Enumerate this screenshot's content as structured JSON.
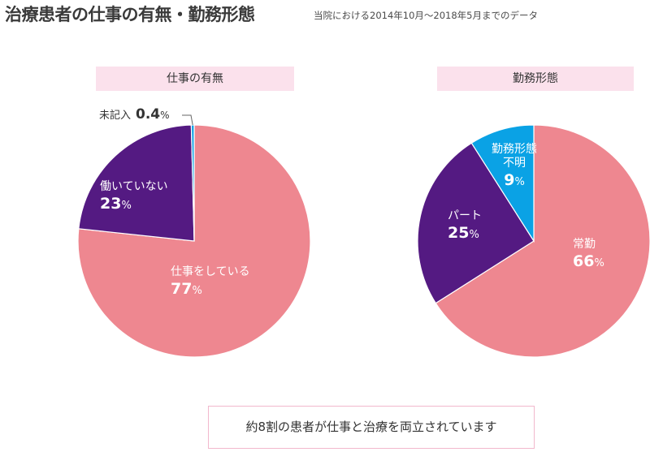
{
  "page": {
    "title": "治療患者の仕事の有無・勤務形態",
    "subtitle": "当院における2014年10月～2018年5月までのデータ",
    "summary": "約8割の患者が仕事と治療を両立されています"
  },
  "colors": {
    "pink": "#ee8790",
    "purple": "#541a82",
    "blue": "#0aa2e5",
    "header_bg": "#fbe1ec",
    "summary_border": "#f2b8cd"
  },
  "chart_data": [
    {
      "type": "pie",
      "title": "仕事の有無",
      "start_angle_deg": 0,
      "direction": "clockwise",
      "slices": [
        {
          "label": "仕事をしている",
          "value": 77,
          "display": "77",
          "unit": "%",
          "color": "#ee8790"
        },
        {
          "label": "働いていない",
          "value": 23,
          "display": "23",
          "unit": "%",
          "color": "#541a82"
        },
        {
          "label": "未記入",
          "value": 0.4,
          "display": "0.4",
          "unit": "%",
          "color": "#0aa2e5"
        }
      ]
    },
    {
      "type": "pie",
      "title": "勤務形態",
      "start_angle_deg": 0,
      "direction": "clockwise",
      "slices": [
        {
          "label": "常勤",
          "value": 66,
          "display": "66",
          "unit": "%",
          "color": "#ee8790"
        },
        {
          "label": "パート",
          "value": 25,
          "display": "25",
          "unit": "%",
          "color": "#541a82"
        },
        {
          "label": "勤務形態\n不明",
          "value": 9,
          "display": "9",
          "unit": "%",
          "color": "#0aa2e5"
        }
      ]
    }
  ]
}
